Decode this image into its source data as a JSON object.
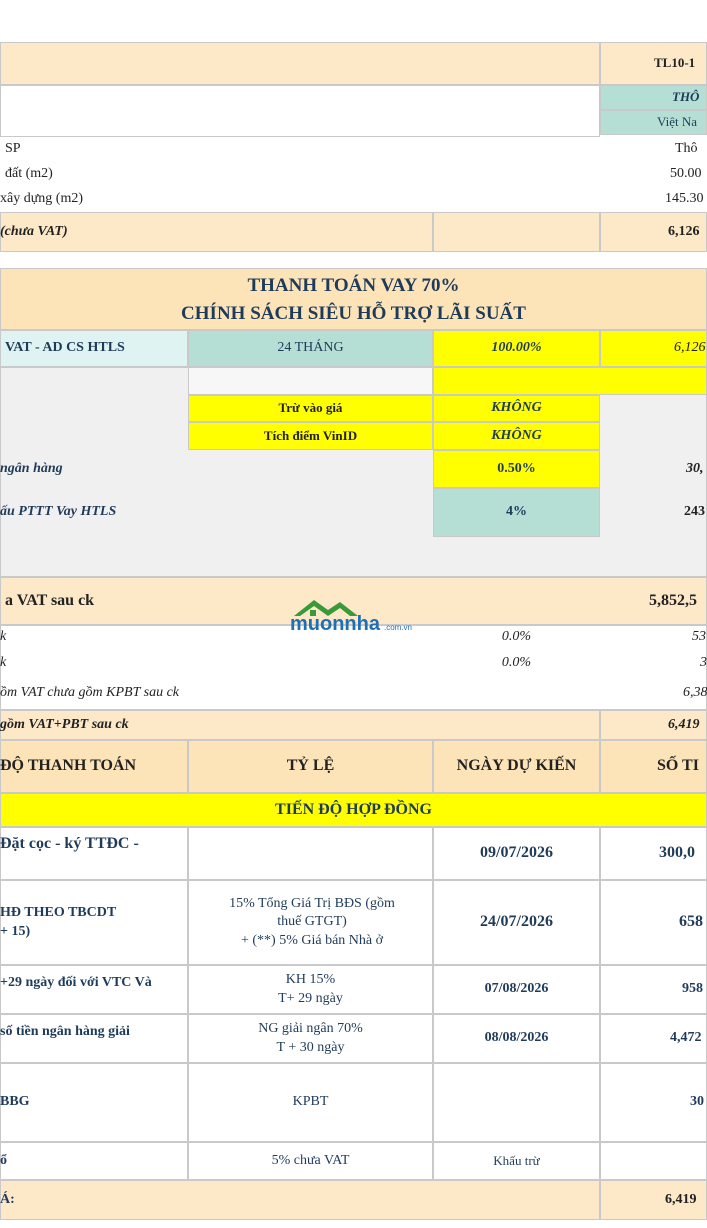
{
  "top": {
    "code": "TL10-1",
    "type": "THÔ",
    "origin": "Việt Na"
  },
  "specs": [
    {
      "label": "SP",
      "value": "Thô"
    },
    {
      "label": "đất (m2)",
      "value": "50.00"
    },
    {
      "label": "xây dựng (m2)",
      "value": "145.30"
    }
  ],
  "price": {
    "label": "(chưa VAT)",
    "value": "6,126"
  },
  "policy": {
    "title": "THANH TOÁN VAY 70%",
    "subtitle": "CHÍNH SÁCH SIÊU HỖ TRỢ LÃI SUẤT"
  },
  "loan": {
    "label": "VAT - AD CS HTLS",
    "term": "24 THÁNG",
    "rate": "100.00%",
    "amount": "6,126"
  },
  "options": [
    {
      "label": "Trừ vào giá",
      "value": "KHÔNG"
    },
    {
      "label": "Tích điểm VinID",
      "value": "KHÔNG"
    }
  ],
  "bank": {
    "label": "ngân hàng",
    "rate": "0.50%",
    "amount": "30,"
  },
  "htls": {
    "label": "ấu PTTT Vay HTLS",
    "rate": "4%",
    "amount": "243"
  },
  "totals": {
    "after_discount_label": "a VAT sau ck",
    "after_discount": "5,852,5",
    "discounts": [
      {
        "label": "k",
        "rate": "0.0%",
        "amount": "53"
      },
      {
        "label": "k",
        "rate": "0.0%",
        "amount": "3"
      }
    ],
    "incl_vat_label": "ồm VAT chưa gồm KPBT sau ck",
    "incl_vat": "6,38",
    "incl_all_label": "gồm VAT+PBT sau ck",
    "incl_all": "6,419"
  },
  "schedule": {
    "headers": [
      "ĐỘ THANH TOÁN",
      "TỶ LỆ",
      "NGÀY DỰ KIẾN",
      "SỐ TI"
    ],
    "section": "TIẾN ĐỘ HỢP ĐỒNG",
    "rows": [
      {
        "stage": "Đặt cọc - ký TTĐC -",
        "date": "09/07/2026",
        "amount": "300,0"
      },
      {
        "stage": "HĐ THEO TBCDT\n+ 15)",
        "ratio": "15% Tổng Giá Trị BĐS (gồm\nthuế GTGT)\n+ (**)  5% Giá bán Nhà ở",
        "date": "24/07/2026",
        "amount": "658"
      },
      {
        "stage": "+29 ngày đối với VTC Và",
        "ratio": "KH 15%\nT+ 29 ngày",
        "date": "07/08/2026",
        "amount": "958"
      },
      {
        "stage": "số tiền ngân hàng giải",
        "ratio": "NG giải ngân 70%\nT + 30 ngày",
        "date": "08/08/2026",
        "amount": "4,472"
      },
      {
        "stage": "BBG",
        "ratio": "KPBT",
        "amount": "30"
      },
      {
        "stage": "ổ",
        "ratio": "5% chưa VAT",
        "date": "Khấu trừ"
      }
    ]
  },
  "total": {
    "label": "Á:",
    "value": "6,419"
  },
  "watermark": {
    "brand": "muonnha",
    "domain": ".com.vn"
  }
}
